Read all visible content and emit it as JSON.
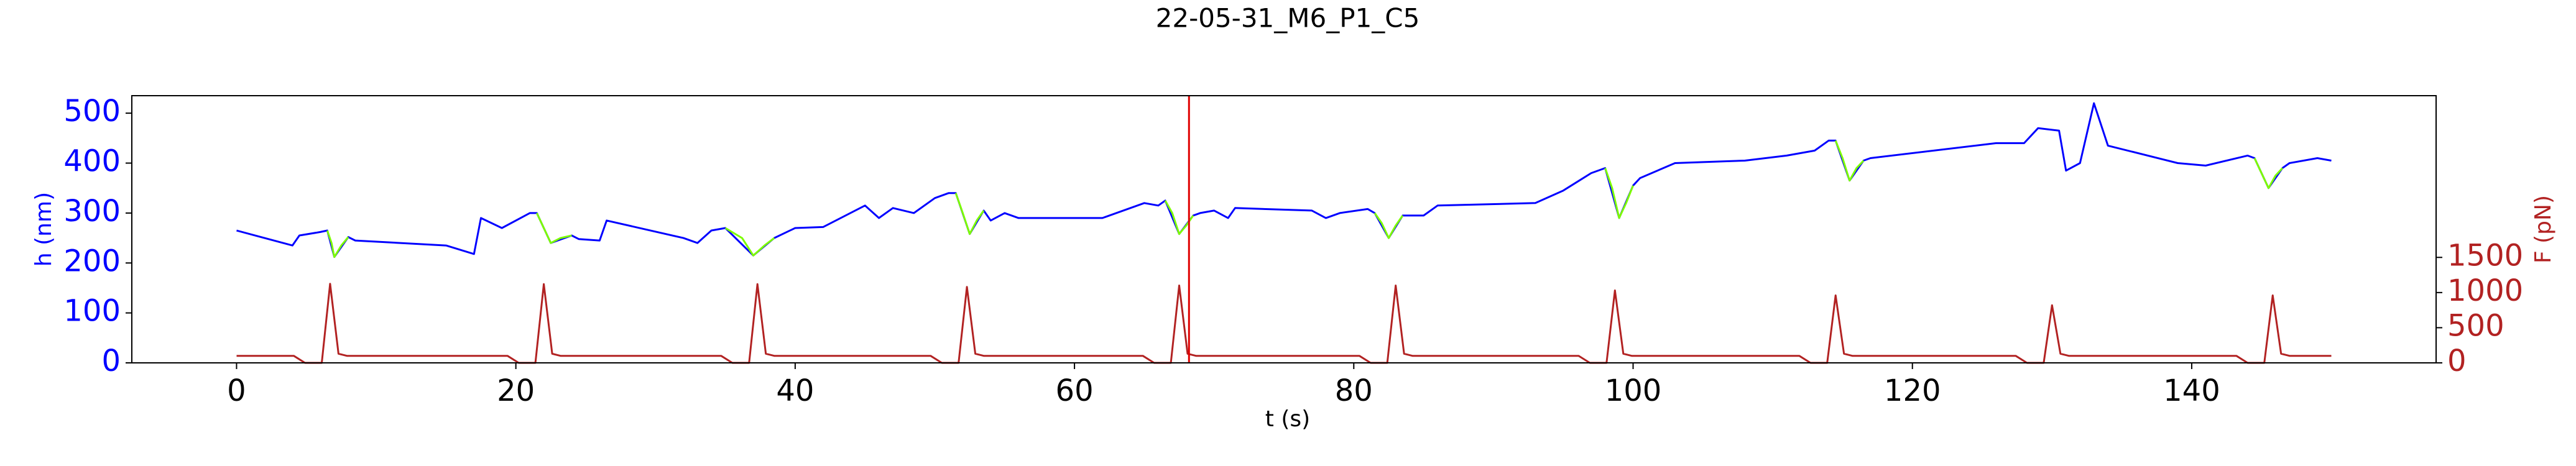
{
  "chart_data": {
    "type": "line",
    "title": "22-05-31_M6_P1_C5",
    "xlabel": "t (s)",
    "ylabel": "h (nm)",
    "y2label": "F (pN)",
    "y_color": "#0000ff",
    "y2_color": "#b22222",
    "xlim": [
      -7.5,
      157.5
    ],
    "xticks": [
      0,
      20,
      40,
      60,
      80,
      100,
      120,
      140
    ],
    "ylim": [
      0,
      535
    ],
    "yticks": [
      0,
      100,
      200,
      300,
      400,
      500
    ],
    "y2lim": [
      0,
      3800
    ],
    "y2ticks": [
      0,
      500,
      1000,
      1500
    ],
    "vline": 68.2,
    "vline_color": "#e00000",
    "series": [
      {
        "color": "#0000ff",
        "x": [
          0,
          4,
          4.5,
          6,
          6.5,
          7,
          8,
          8.5,
          15,
          17,
          17.5,
          19,
          21,
          21.5,
          22.5,
          24,
          24.5,
          26,
          26.5,
          32,
          33,
          34,
          35,
          37,
          38.5,
          40,
          42,
          45,
          46,
          47,
          48.5,
          50,
          51,
          51.5,
          52.5,
          53.5,
          54,
          55,
          56,
          62,
          65,
          66,
          66.5,
          67.5,
          68.5,
          69,
          70,
          71,
          71.5,
          77,
          78,
          79,
          81,
          81.5,
          82.5,
          83.5,
          85,
          86,
          93,
          95,
          97,
          98,
          99,
          100,
          100.5,
          103,
          108,
          111,
          113,
          114,
          114.5,
          115.5,
          116.5,
          117,
          126,
          128,
          129,
          130.5,
          131,
          132,
          133,
          134,
          139,
          141,
          144,
          144.5,
          145.5,
          146.5,
          147,
          149,
          150
        ],
        "values": [
          265,
          235,
          255,
          262,
          265,
          212,
          252,
          245,
          235,
          218,
          290,
          270,
          300,
          300,
          240,
          255,
          248,
          245,
          285,
          250,
          240,
          265,
          270,
          215,
          250,
          270,
          272,
          315,
          290,
          310,
          300,
          330,
          340,
          340,
          258,
          305,
          285,
          300,
          290,
          290,
          320,
          315,
          325,
          258,
          295,
          300,
          305,
          290,
          310,
          305,
          290,
          300,
          308,
          300,
          250,
          295,
          295,
          315,
          320,
          345,
          380,
          390,
          290,
          355,
          370,
          400,
          405,
          415,
          425,
          445,
          445,
          365,
          405,
          410,
          440,
          440,
          470,
          465,
          385,
          400,
          520,
          435,
          400,
          395,
          415,
          410,
          350,
          390,
          400,
          410,
          405
        ]
      },
      {
        "color": "#7cfc00",
        "x": [
          6.5,
          6.8,
          7,
          7.5,
          8
        ],
        "values": [
          265,
          240,
          212,
          235,
          252
        ]
      },
      {
        "color": "#7cfc00",
        "x": [
          21.5,
          22,
          22.5,
          23.2,
          24
        ],
        "values": [
          300,
          270,
          240,
          250,
          255
        ]
      },
      {
        "color": "#7cfc00",
        "x": [
          35,
          36.2,
          37,
          37.8,
          38.5
        ],
        "values": [
          270,
          250,
          215,
          235,
          250
        ]
      },
      {
        "color": "#7cfc00",
        "x": [
          51.5,
          52,
          52.5,
          53,
          53.5
        ],
        "values": [
          340,
          300,
          258,
          285,
          305
        ]
      },
      {
        "color": "#7cfc00",
        "x": [
          66.5,
          67,
          67.5,
          68,
          68.5
        ],
        "values": [
          325,
          300,
          258,
          275,
          295
        ]
      },
      {
        "color": "#7cfc00",
        "x": [
          81.5,
          82,
          82.5,
          83,
          83.5
        ],
        "values": [
          300,
          280,
          250,
          275,
          295
        ]
      },
      {
        "color": "#7cfc00",
        "x": [
          98,
          98.5,
          99,
          99.5,
          100
        ],
        "values": [
          390,
          350,
          290,
          320,
          355
        ]
      },
      {
        "color": "#7cfc00",
        "x": [
          114.5,
          115,
          115.5,
          116,
          116.5
        ],
        "values": [
          445,
          410,
          365,
          390,
          405
        ]
      },
      {
        "color": "#7cfc00",
        "x": [
          144.5,
          145,
          145.5,
          146,
          146.5
        ],
        "values": [
          410,
          380,
          350,
          375,
          390
        ]
      },
      {
        "color": "#b22222",
        "axis": "y2",
        "x": [
          0,
          4.1,
          4.9,
          6.1,
          6.7,
          7.3,
          7.9,
          19.4,
          20.2,
          21.4,
          22.0,
          22.6,
          23.2,
          34.7,
          35.5,
          36.7,
          37.3,
          37.9,
          38.5,
          49.7,
          50.5,
          51.7,
          52.3,
          52.9,
          53.5,
          64.9,
          65.7,
          66.9,
          67.5,
          68.1,
          68.7,
          80.4,
          81.2,
          82.4,
          83.0,
          83.6,
          84.2,
          96.1,
          96.9,
          98.1,
          98.7,
          99.3,
          99.9,
          111.9,
          112.7,
          113.9,
          114.5,
          115.1,
          115.7,
          127.4,
          128.2,
          129.4,
          130.0,
          130.6,
          131.2,
          143.2,
          144.0,
          145.2,
          145.8,
          146.4,
          147.0,
          150
        ],
        "values": [
          100,
          100,
          0,
          0,
          1125,
          130,
          100,
          100,
          0,
          0,
          1120,
          130,
          100,
          100,
          0,
          0,
          1120,
          130,
          100,
          100,
          0,
          0,
          1080,
          130,
          100,
          100,
          0,
          0,
          1100,
          130,
          100,
          100,
          0,
          0,
          1100,
          130,
          100,
          100,
          0,
          0,
          1030,
          130,
          100,
          100,
          0,
          0,
          960,
          130,
          100,
          100,
          0,
          0,
          820,
          130,
          100,
          100,
          0,
          0,
          960,
          130,
          100,
          100
        ]
      }
    ]
  }
}
